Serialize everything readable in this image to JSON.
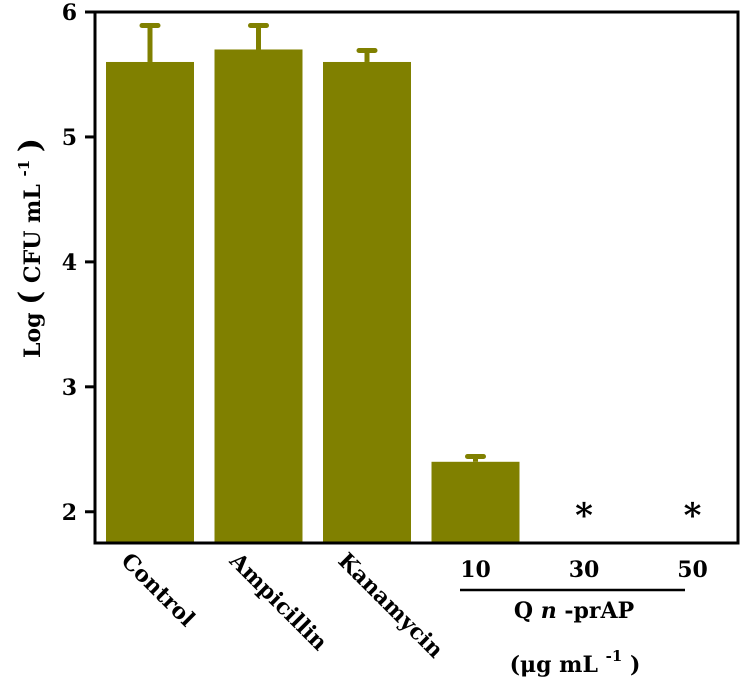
{
  "chart_data": {
    "type": "bar",
    "categories": [
      "Control",
      "Ampicillin",
      "Kanamycin",
      "10",
      "30",
      "50"
    ],
    "values": [
      5.6,
      5.7,
      5.6,
      2.4,
      null,
      null
    ],
    "errors": [
      0.3,
      0.2,
      0.1,
      0.05,
      null,
      null
    ],
    "markers": [
      "",
      "",
      "",
      "",
      "*",
      "*"
    ],
    "ylabel": {
      "prefix": "Log",
      "open": "(",
      "main": "CFU mL",
      "sup": "-1",
      "close": ")"
    },
    "ylim": [
      1.75,
      6
    ],
    "yticks": [
      2,
      3,
      4,
      5,
      6
    ],
    "group_label": {
      "q": "Q",
      "n": "n",
      "rest": "-prAP"
    },
    "group_unit": {
      "main": "(μg mL",
      "sup": "-1",
      "close": ")"
    },
    "bar_color": "#808000",
    "grid": false,
    "legend": "none"
  }
}
